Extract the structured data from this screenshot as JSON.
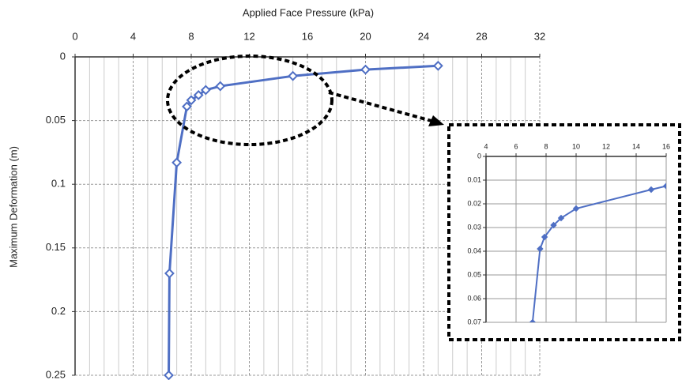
{
  "chart_data": [
    {
      "type": "line",
      "xlabel": "Applied Face Pressure (kPa)",
      "ylabel": "Maximum Deformation (m)",
      "x": [
        25,
        20,
        15,
        10,
        9,
        8.5,
        8,
        7.7,
        7,
        6.5,
        6.45
      ],
      "values": [
        0.007,
        0.01,
        0.015,
        0.023,
        0.026,
        0.03,
        0.034,
        0.039,
        0.083,
        0.17,
        0.25
      ],
      "color": "#4f6fc4",
      "marker": "open-diamond",
      "xlim": [
        0,
        32
      ],
      "xticks": [
        0,
        4,
        8,
        12,
        16,
        20,
        24,
        28,
        32
      ],
      "ylim": [
        0,
        0.25
      ],
      "yticks": [
        0,
        0.05,
        0.1,
        0.15,
        0.2,
        0.25
      ],
      "y_inverted": true,
      "x_axis_position": "top",
      "grid": true
    },
    {
      "type": "line",
      "x": [
        16,
        15,
        10,
        9,
        8.5,
        7.9,
        7.6,
        7.1
      ],
      "values": [
        0.0125,
        0.014,
        0.022,
        0.026,
        0.029,
        0.034,
        0.039,
        0.07
      ],
      "color": "#4f6fc4",
      "marker": "filled-diamond",
      "xlim": [
        4,
        16
      ],
      "xticks": [
        4,
        6,
        8,
        10,
        12,
        14,
        16
      ],
      "ylim": [
        0,
        0.07
      ],
      "yticks": [
        0,
        0.01,
        0.02,
        0.03,
        0.04,
        0.05,
        0.06,
        0.07
      ],
      "y_inverted": true,
      "x_axis_position": "top",
      "grid": true
    }
  ]
}
